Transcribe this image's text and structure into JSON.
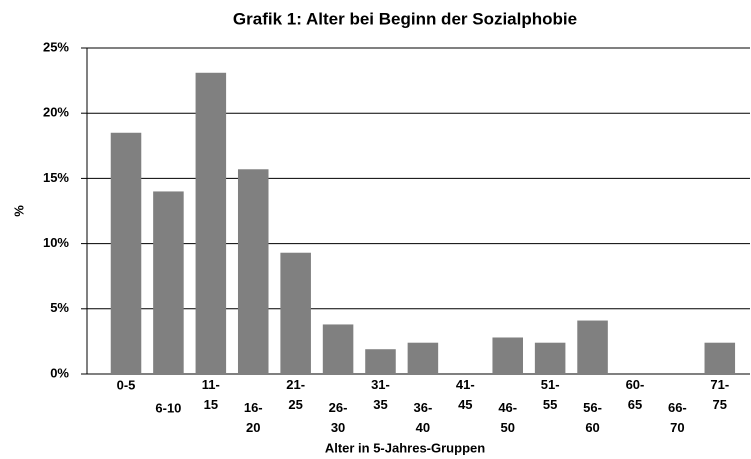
{
  "chart_data": {
    "type": "bar",
    "title": "Grafik 1: Alter bei Beginn der Sozialphobie",
    "x_label": "Alter in 5-Jahres-Gruppen",
    "y_label": "%",
    "categories": [
      "0-5",
      "6-10",
      "11-\n15",
      "16-\n20",
      "21-\n25",
      "26-\n30",
      "31-\n35",
      "36-\n40",
      "41-\n45",
      "46-\n50",
      "51-\n55",
      "56-\n60",
      "60-\n65",
      "66-\n70",
      "71-\n75"
    ],
    "values": [
      18.5,
      14.0,
      23.1,
      15.7,
      9.3,
      3.8,
      1.9,
      2.4,
      0,
      2.8,
      2.4,
      4.1,
      0,
      0,
      2.4
    ],
    "color": "#808080",
    "ylim": [
      0,
      25
    ],
    "yticks": [
      {
        "value": 0,
        "label": "0%"
      },
      {
        "value": 5,
        "label": "5%"
      },
      {
        "value": 10,
        "label": "10%"
      },
      {
        "value": 15,
        "label": "15%"
      },
      {
        "value": 20,
        "label": "20%"
      },
      {
        "value": 25,
        "label": "25%"
      }
    ],
    "grid": true
  }
}
